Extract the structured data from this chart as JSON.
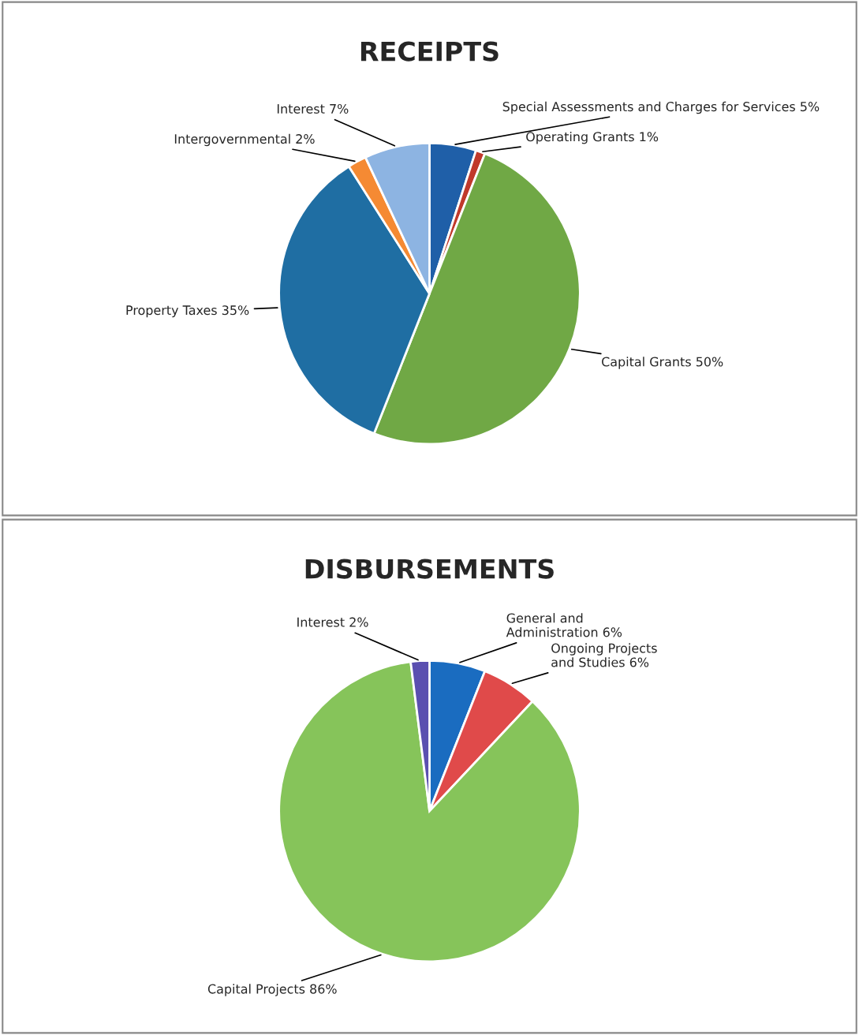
{
  "chart_data": [
    {
      "type": "pie",
      "title": "RECEIPTS",
      "categories": [
        "Special Assessments and Charges for Services",
        "Operating Grants",
        "Capital Grants",
        "Property Taxes",
        "Intergovernmental",
        "Interest"
      ],
      "values": [
        5,
        1,
        50,
        35,
        2,
        7
      ],
      "colors": [
        "#1f5fa8",
        "#c0392b",
        "#70a845",
        "#1f6ea3",
        "#f58a33",
        "#8db4e2"
      ],
      "value_labels": [
        "5%",
        "1%",
        "50%",
        "35%",
        "2%",
        "7%"
      ],
      "legend": false
    },
    {
      "type": "pie",
      "title": "DISBURSEMENTS",
      "categories": [
        "General and\nAdministration",
        "Ongoing Projects\nand Studies",
        "Capital Projects",
        "Interest"
      ],
      "values": [
        6,
        6,
        86,
        2
      ],
      "colors": [
        "#1a6cc0",
        "#e04a4a",
        "#86c45a",
        "#5a4fb0"
      ],
      "value_labels": [
        "6%",
        "6%",
        "86%",
        "2%"
      ],
      "legend": false
    }
  ]
}
